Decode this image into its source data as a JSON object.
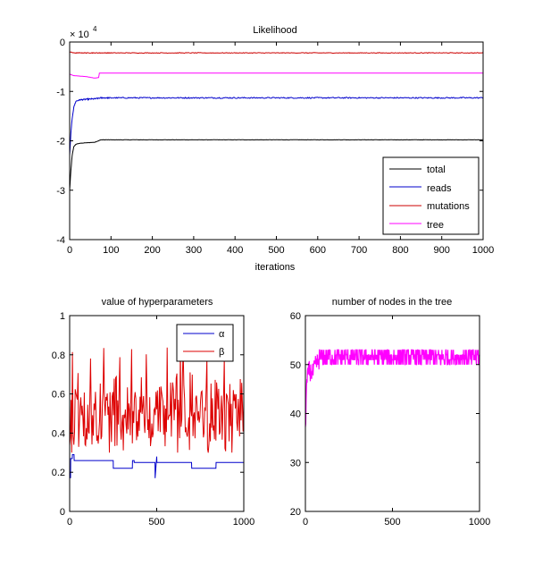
{
  "chart_data": [
    {
      "type": "line",
      "title": "Likelihood",
      "xlabel": "iterations",
      "ylabel": "",
      "exponent_label": "× 10",
      "exponent_power": "4",
      "xlim": [
        0,
        1000
      ],
      "ylim": [
        -4,
        0
      ],
      "xticks": [
        0,
        100,
        200,
        300,
        400,
        500,
        600,
        700,
        800,
        900,
        1000
      ],
      "yticks": [
        0,
        -1,
        -2,
        -3,
        -4
      ],
      "legend_position": "bottom-right",
      "series": [
        {
          "name": "total",
          "color": "#000000",
          "x": [
            0,
            3,
            6,
            10,
            15,
            25,
            40,
            60,
            70,
            75,
            1000
          ],
          "y": [
            -3.0,
            -2.6,
            -2.3,
            -2.12,
            -2.07,
            -2.05,
            -2.04,
            -2.03,
            -2.0,
            -1.98,
            -1.98
          ],
          "noise": 0.003
        },
        {
          "name": "reads",
          "color": "#0000cc",
          "x": [
            0,
            3,
            6,
            10,
            15,
            25,
            40,
            60,
            70,
            75,
            1000
          ],
          "y": [
            -2.3,
            -1.85,
            -1.55,
            -1.32,
            -1.2,
            -1.17,
            -1.16,
            -1.15,
            -1.14,
            -1.13,
            -1.13
          ],
          "noise": 0.012
        },
        {
          "name": "mutations",
          "color": "#cc0000",
          "x": [
            0,
            10,
            50,
            1000
          ],
          "y": [
            -0.2,
            -0.22,
            -0.22,
            -0.22
          ],
          "noise": 0.006
        },
        {
          "name": "tree",
          "color": "#ff00ff",
          "x": [
            0,
            10,
            40,
            60,
            70,
            72,
            1000
          ],
          "y": [
            -0.65,
            -0.68,
            -0.7,
            -0.73,
            -0.72,
            -0.63,
            -0.63
          ],
          "noise": 0.0
        }
      ]
    },
    {
      "type": "line",
      "title": "value of hyperparameters",
      "xlabel": "",
      "ylabel": "",
      "xlim": [
        0,
        1000
      ],
      "ylim": [
        0,
        1
      ],
      "xticks": [
        0,
        500,
        1000
      ],
      "yticks": [
        0,
        0.2,
        0.4,
        0.6,
        0.8,
        1
      ],
      "legend_position": "top-right",
      "series": [
        {
          "name": "α",
          "color": "#0000cc",
          "x": [
            0,
            5,
            6,
            15,
            16,
            25,
            26,
            250,
            251,
            360,
            361,
            370,
            371,
            490,
            491,
            500,
            501,
            700,
            701,
            840,
            841,
            1000
          ],
          "y": [
            0.2,
            0.17,
            0.27,
            0.27,
            0.29,
            0.29,
            0.26,
            0.26,
            0.22,
            0.22,
            0.26,
            0.26,
            0.25,
            0.25,
            0.17,
            0.28,
            0.25,
            0.25,
            0.22,
            0.22,
            0.25,
            0.25
          ]
        },
        {
          "name": "β",
          "color": "#dd0000",
          "noisy": true,
          "mean": 0.5,
          "range": [
            0.3,
            0.84
          ]
        }
      ]
    },
    {
      "type": "line",
      "title": "number of nodes in the tree",
      "xlabel": "",
      "ylabel": "",
      "xlim": [
        0,
        1000
      ],
      "ylim": [
        20,
        60
      ],
      "xticks": [
        0,
        500,
        1000
      ],
      "yticks": [
        20,
        30,
        40,
        50,
        60
      ],
      "series": [
        {
          "name": "",
          "color": "#ff00ff",
          "x": [
            0,
            5,
            20,
            40,
            60,
            80,
            1000
          ],
          "y": [
            36,
            45,
            49,
            48,
            50,
            51,
            51
          ],
          "noise_range": [
            50,
            53
          ]
        }
      ]
    }
  ]
}
